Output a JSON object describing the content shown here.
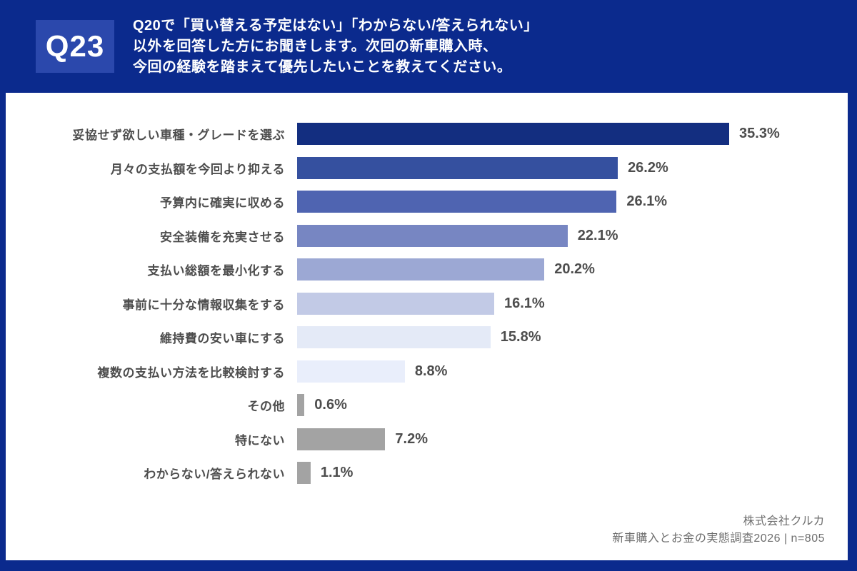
{
  "header": {
    "badge": "Q23",
    "question_lines": [
      "Q20で「買い替える予定はない」「わからない/答えられない」",
      "以外を回答した方にお聞きします。次回の新車購入時、",
      "今回の経験を踏まえて優先したいことを教えてください。"
    ]
  },
  "chart_data": {
    "type": "bar",
    "orientation": "horizontal",
    "categories": [
      "妥協せず欲しい車種・グレードを選ぶ",
      "月々の支払額を今回より抑える",
      "予算内に確実に収める",
      "安全装備を充実させる",
      "支払い総額を最小化する",
      "事前に十分な情報収集をする",
      "維持費の安い車にする",
      "複数の支払い方法を比較検討する",
      "その他",
      "特にない",
      "わからない/答えられない"
    ],
    "values": [
      35.3,
      26.2,
      26.1,
      22.1,
      20.2,
      16.1,
      15.8,
      8.8,
      0.6,
      7.2,
      1.1
    ],
    "value_labels": [
      "35.3%",
      "26.2%",
      "26.1%",
      "22.1%",
      "20.2%",
      "16.1%",
      "15.8%",
      "8.8%",
      "0.6%",
      "7.2%",
      "1.1%"
    ],
    "bar_colors": [
      "#132e80",
      "#35509f",
      "#4f64b1",
      "#7786c2",
      "#9ca8d4",
      "#c2cae6",
      "#e4eaf7",
      "#e9eefb",
      "#a3a3a3",
      "#a3a3a3",
      "#a3a3a3"
    ],
    "xlim": [
      0,
      37
    ],
    "grid": false,
    "legend": "none",
    "title": ""
  },
  "footer": {
    "company": "株式会社クルカ",
    "survey": "新車購入とお金の実態調査2026 | n=805"
  },
  "colors": {
    "frame_blue": "#0b2a8d",
    "badge_blue": "#2b48ac",
    "panel_white": "#ffffff",
    "label_gray": "#4d4d4d",
    "footer_gray": "#6e6e6e"
  }
}
